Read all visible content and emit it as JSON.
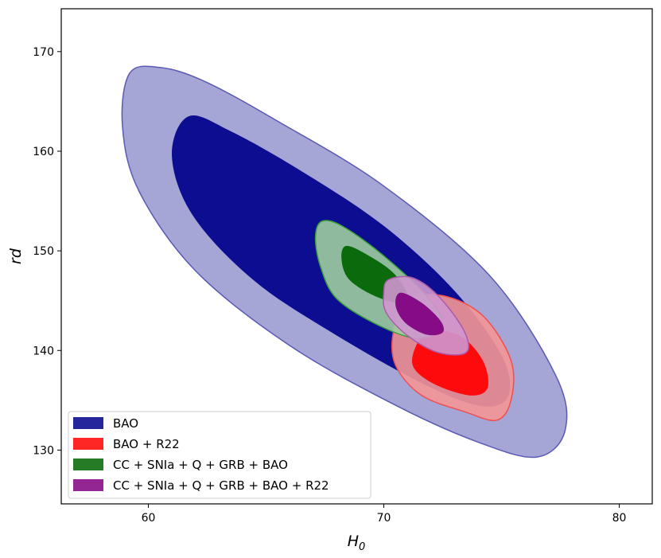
{
  "chart_data": {
    "type": "contour",
    "title": "",
    "xlabel": "H",
    "xlabel_sub": "0",
    "ylabel": "rd",
    "xlim": [
      56.3,
      81.4
    ],
    "ylim": [
      124.6,
      174.3
    ],
    "xticks": [
      60,
      70,
      80
    ],
    "yticks": [
      130,
      140,
      150,
      160,
      170
    ],
    "legend_position": "lower-left",
    "series": [
      {
        "name": "BAO",
        "inner_color": "#00008b",
        "outer_color": "#9b9bd1",
        "edge_color": "#5a5ab4",
        "center": [
          68.7,
          148.9
        ],
        "outer_contour": [
          [
            59.2,
            167.8
          ],
          [
            60.5,
            168.4
          ],
          [
            62.4,
            167.0
          ],
          [
            65.5,
            163.0
          ],
          [
            70.0,
            156.5
          ],
          [
            74.5,
            147.5
          ],
          [
            77.3,
            137.5
          ],
          [
            77.7,
            132.0
          ],
          [
            76.5,
            129.3
          ],
          [
            74.0,
            130.8
          ],
          [
            70.5,
            134.5
          ],
          [
            66.0,
            140.5
          ],
          [
            62.0,
            148.0
          ],
          [
            59.6,
            156.0
          ],
          [
            58.9,
            162.5
          ]
        ],
        "inner_contour": [
          [
            61.7,
            163.5
          ],
          [
            63.5,
            162.0
          ],
          [
            66.5,
            158.0
          ],
          [
            70.0,
            152.5
          ],
          [
            73.0,
            146.0
          ],
          [
            75.0,
            139.5
          ],
          [
            75.3,
            135.5
          ],
          [
            74.2,
            134.4
          ],
          [
            71.8,
            136.5
          ],
          [
            68.0,
            141.5
          ],
          [
            64.5,
            147.0
          ],
          [
            61.9,
            153.5
          ],
          [
            61.0,
            159.5
          ]
        ]
      },
      {
        "name": "BAO + R22",
        "inner_color": "#ff0000",
        "outer_color": "#f39696",
        "edge_color": "#ee4f4f",
        "center": [
          72.8,
          139.3
        ],
        "outer_contour": [
          [
            71.0,
            145.0
          ],
          [
            72.5,
            145.5
          ],
          [
            74.2,
            143.5
          ],
          [
            75.4,
            139.0
          ],
          [
            75.4,
            135.0
          ],
          [
            74.8,
            133.0
          ],
          [
            73.5,
            133.8
          ],
          [
            71.6,
            135.5
          ],
          [
            70.5,
            138.5
          ],
          [
            70.4,
            141.8
          ]
        ],
        "inner_contour": [
          [
            71.8,
            141.8
          ],
          [
            73.2,
            141.5
          ],
          [
            74.2,
            139.0
          ],
          [
            74.4,
            136.2
          ],
          [
            73.6,
            135.5
          ],
          [
            72.0,
            136.8
          ],
          [
            71.2,
            138.8
          ]
        ]
      },
      {
        "name": "CC + SNIa + Q + GRB + BAO",
        "inner_color": "#006400",
        "outer_color": "#9fcd9f",
        "edge_color": "#3aa03a",
        "center": [
          69.6,
          146.7
        ],
        "outer_contour": [
          [
            67.4,
            153.0
          ],
          [
            68.3,
            152.4
          ],
          [
            70.0,
            149.5
          ],
          [
            71.8,
            145.5
          ],
          [
            72.5,
            142.6
          ],
          [
            71.5,
            141.2
          ],
          [
            69.8,
            142.5
          ],
          [
            68.0,
            145.2
          ],
          [
            67.3,
            148.5
          ],
          [
            67.1,
            151.5
          ]
        ],
        "inner_contour": [
          [
            68.4,
            150.5
          ],
          [
            69.3,
            149.6
          ],
          [
            70.4,
            147.8
          ],
          [
            71.0,
            145.6
          ],
          [
            70.6,
            144.8
          ],
          [
            69.5,
            145.6
          ],
          [
            68.5,
            147.2
          ],
          [
            68.2,
            149.2
          ]
        ]
      },
      {
        "name": "CC + SNIa + Q + GRB + BAO + R22",
        "inner_color": "#800080",
        "outer_color": "#cf97cf",
        "edge_color": "#ac5bac",
        "center": [
          71.2,
          143.0
        ],
        "outer_contour": [
          [
            70.2,
            147.1
          ],
          [
            71.2,
            147.3
          ],
          [
            72.3,
            145.5
          ],
          [
            73.4,
            142.0
          ],
          [
            73.5,
            139.8
          ],
          [
            72.3,
            139.8
          ],
          [
            71.0,
            141.5
          ],
          [
            70.1,
            143.8
          ],
          [
            70.0,
            145.8
          ]
        ],
        "inner_contour": [
          [
            70.7,
            145.8
          ],
          [
            71.6,
            144.8
          ],
          [
            72.4,
            143.0
          ],
          [
            72.5,
            141.8
          ],
          [
            71.8,
            141.6
          ],
          [
            70.9,
            142.8
          ],
          [
            70.5,
            144.5
          ]
        ]
      }
    ]
  }
}
